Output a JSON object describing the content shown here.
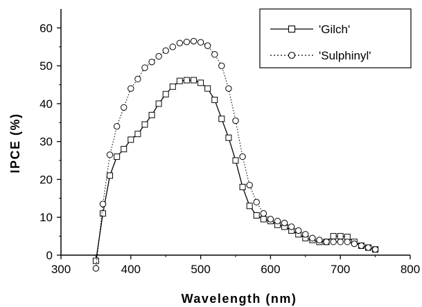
{
  "chart_data": {
    "type": "line",
    "xlabel": "Wavelength (nm)",
    "ylabel": "IPCE (%)",
    "xlim": [
      300,
      800
    ],
    "ylim": [
      0,
      65
    ],
    "xticks": [
      300,
      400,
      500,
      600,
      700,
      800
    ],
    "yticks": [
      0,
      10,
      20,
      30,
      40,
      50,
      60
    ],
    "grid": false,
    "legend_position": "top-right",
    "series": [
      {
        "name": "'Gilch'",
        "marker": "square",
        "line_style": "solid",
        "x": [
          350,
          360,
          370,
          380,
          390,
          400,
          410,
          420,
          430,
          440,
          450,
          460,
          470,
          480,
          490,
          500,
          510,
          520,
          530,
          540,
          550,
          560,
          570,
          580,
          590,
          600,
          610,
          620,
          630,
          640,
          650,
          660,
          670,
          680,
          690,
          700,
          710,
          720,
          730,
          740,
          750
        ],
        "y": [
          -1.5,
          11,
          21,
          26,
          28,
          30.5,
          32,
          34.5,
          37,
          40,
          42.5,
          44.5,
          46,
          46.2,
          46.2,
          45.5,
          44,
          41,
          36,
          31,
          25,
          18,
          13,
          10.5,
          9.5,
          9,
          8,
          7.5,
          6.5,
          5.5,
          4.5,
          4,
          3.5,
          3.5,
          5,
          5,
          4.8,
          3.5,
          2.5,
          2,
          1.5
        ]
      },
      {
        "name": "'Sulphinyl'",
        "marker": "circle",
        "line_style": "dotted",
        "x": [
          350,
          360,
          370,
          380,
          390,
          400,
          410,
          420,
          430,
          440,
          450,
          460,
          470,
          480,
          490,
          500,
          510,
          520,
          530,
          540,
          550,
          560,
          570,
          580,
          590,
          600,
          610,
          620,
          630,
          640,
          650,
          660,
          670,
          680,
          690,
          700,
          710,
          720,
          730,
          740,
          750
        ],
        "y": [
          -3.5,
          13.5,
          26.5,
          34,
          39,
          44,
          46.5,
          49.5,
          51,
          52.5,
          54,
          55,
          56,
          56.3,
          56.5,
          56.2,
          55.3,
          53,
          50,
          44,
          35.5,
          26,
          18.5,
          14,
          11,
          9.5,
          9,
          8.5,
          7.5,
          6.5,
          5.5,
          4.5,
          4,
          3.5,
          3.5,
          3.5,
          3.5,
          3,
          2.5,
          2,
          1.5
        ]
      }
    ]
  }
}
